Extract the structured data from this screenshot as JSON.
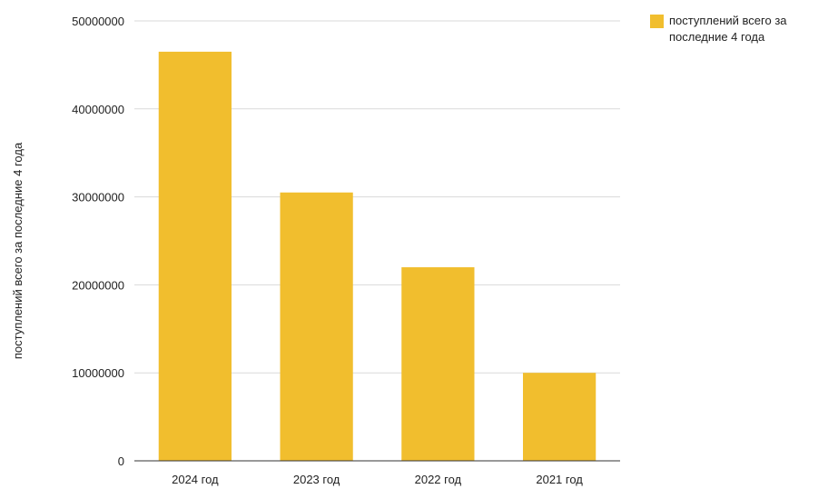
{
  "chart_data": {
    "type": "bar",
    "categories": [
      "2024 год",
      "2023 год",
      "2022 год",
      "2021 год"
    ],
    "series": [
      {
        "name": "поступлений всего за последние 4 года",
        "values": [
          46500000,
          30500000,
          22000000,
          10000000
        ],
        "color": "#f1be2e"
      }
    ],
    "title": "",
    "xlabel": "",
    "ylabel": "поступлений всего за последние 4 года",
    "ylim": [
      0,
      50000000
    ],
    "yticks": [
      0,
      10000000,
      20000000,
      30000000,
      40000000,
      50000000
    ],
    "ytick_labels": [
      "0",
      "10000000",
      "20000000",
      "30000000",
      "40000000",
      "50000000"
    ],
    "grid": true,
    "legend_position": "top-right",
    "colors": {
      "bar": "#f1be2e",
      "grid": "#d9d9d9",
      "axis": "#333333"
    }
  }
}
